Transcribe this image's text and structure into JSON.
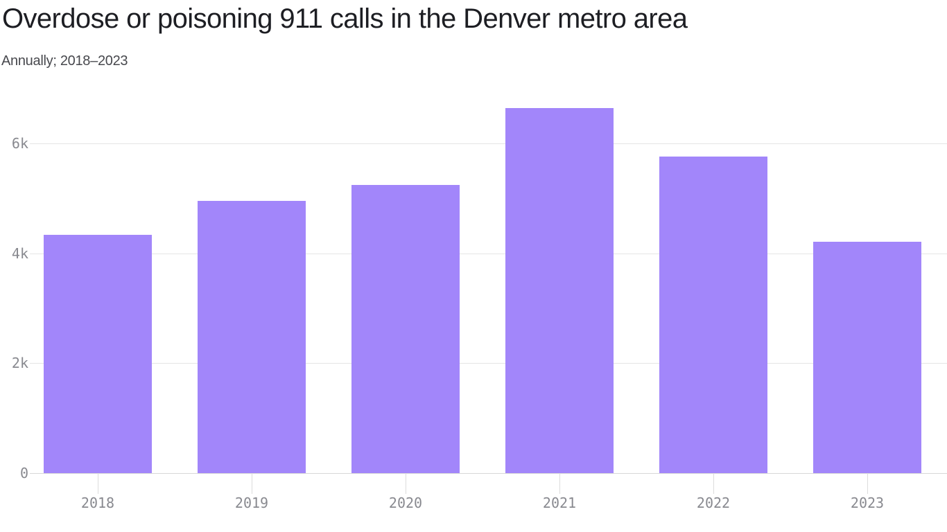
{
  "chart_data": {
    "type": "bar",
    "title": "Overdose or poisoning 911 calls in the Denver metro area",
    "subtitle": "Annually; 2018–2023",
    "categories": [
      "2018",
      "2019",
      "2020",
      "2021",
      "2022",
      "2023"
    ],
    "values": [
      4330,
      4950,
      5240,
      6640,
      5760,
      4210
    ],
    "xlabel": "",
    "ylabel": "",
    "ylim": [
      0,
      7000
    ],
    "yticks": {
      "values": [
        0,
        2000,
        4000,
        6000
      ],
      "labels": [
        "0",
        "2k",
        "4k",
        "6k"
      ]
    },
    "grid": "horizontal gridlines on, vertical off",
    "legend": "none",
    "series_name": "911 calls"
  },
  "colors": {
    "bar": "#a286fa",
    "title_text": "#1d1e23",
    "subtitle_text": "#47484d",
    "axis_label_text": "#88898f",
    "gridline": "#e5e5e5",
    "baseline": "#d7d7d7",
    "tick": "#dcdcdc",
    "background": "#ffffff"
  }
}
